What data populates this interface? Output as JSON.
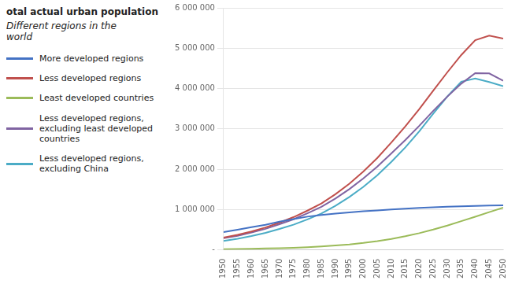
{
  "chart_data": {
    "type": "line",
    "title": "otal actual urban population",
    "subtitle": "Different regions in the\nworld",
    "x": [
      1950,
      1955,
      1960,
      1965,
      1970,
      1975,
      1980,
      1985,
      1990,
      1995,
      2000,
      2005,
      2010,
      2015,
      2020,
      2025,
      2030,
      2035,
      2040,
      2045,
      2050
    ],
    "series": [
      {
        "name": "More developed regions",
        "color": "#4472c4",
        "values": [
          442000,
          498000,
          560000,
          620000,
          698000,
          762000,
          823000,
          863000,
          899000,
          930000,
          956000,
          975000,
          1000000,
          1020000,
          1040000,
          1055000,
          1068000,
          1080000,
          1090000,
          1097000,
          1102000
        ]
      },
      {
        "name": "Less developed regions",
        "color": "#c0504d",
        "values": [
          304000,
          371000,
          456000,
          554000,
          675000,
          810000,
          972000,
          1150000,
          1380000,
          1640000,
          1942000,
          2280000,
          2660000,
          3060000,
          3490000,
          3950000,
          4400000,
          4830000,
          5200000,
          5310000,
          5240000
        ]
      },
      {
        "name": "Least developed countries",
        "color": "#9bbb59",
        "values": [
          18000,
          22000,
          27000,
          33000,
          41000,
          52000,
          66000,
          84000,
          107000,
          135000,
          171000,
          215000,
          270000,
          336000,
          413000,
          503000,
          602000,
          710000,
          820000,
          935000,
          1047000
        ]
      },
      {
        "name": "Less developed regions,\nexcluding least developed\ncountries",
        "color": "#8064a2",
        "values": [
          286000,
          349000,
          429000,
          521000,
          634000,
          758000,
          906000,
          1066000,
          1273000,
          1505000,
          1771000,
          2065000,
          2390000,
          2724000,
          3077000,
          3447000,
          3798000,
          4120000,
          4380000,
          4375000,
          4193000
        ]
      },
      {
        "name": "Less developed regions,\nexcluding China",
        "color": "#4bacc6",
        "values": [
          222000,
          275000,
          341000,
          420000,
          517000,
          623000,
          754000,
          902000,
          1090000,
          1310000,
          1562000,
          1850000,
          2180000,
          2540000,
          2940000,
          3380000,
          3800000,
          4170000,
          4250000,
          4160000,
          4060000
        ]
      }
    ],
    "xlim": [
      1950,
      2050
    ],
    "xticks": [
      1950,
      1955,
      1960,
      1965,
      1970,
      1975,
      1980,
      1985,
      1990,
      1995,
      2000,
      2005,
      2010,
      2015,
      2020,
      2025,
      2030,
      2035,
      2040,
      2045,
      2050
    ],
    "ylim": [
      0,
      6000000
    ],
    "yticks": [
      {
        "value": 0,
        "label": "-"
      },
      {
        "value": 1000000,
        "label": "1 000 000"
      },
      {
        "value": 2000000,
        "label": "2 000 000"
      },
      {
        "value": 3000000,
        "label": "3 000 000"
      },
      {
        "value": 4000000,
        "label": "4 000 000"
      },
      {
        "value": 5000000,
        "label": "5 000 000"
      },
      {
        "value": 6000000,
        "label": "6 000 000"
      }
    ],
    "grid": "y",
    "legend": "left"
  }
}
